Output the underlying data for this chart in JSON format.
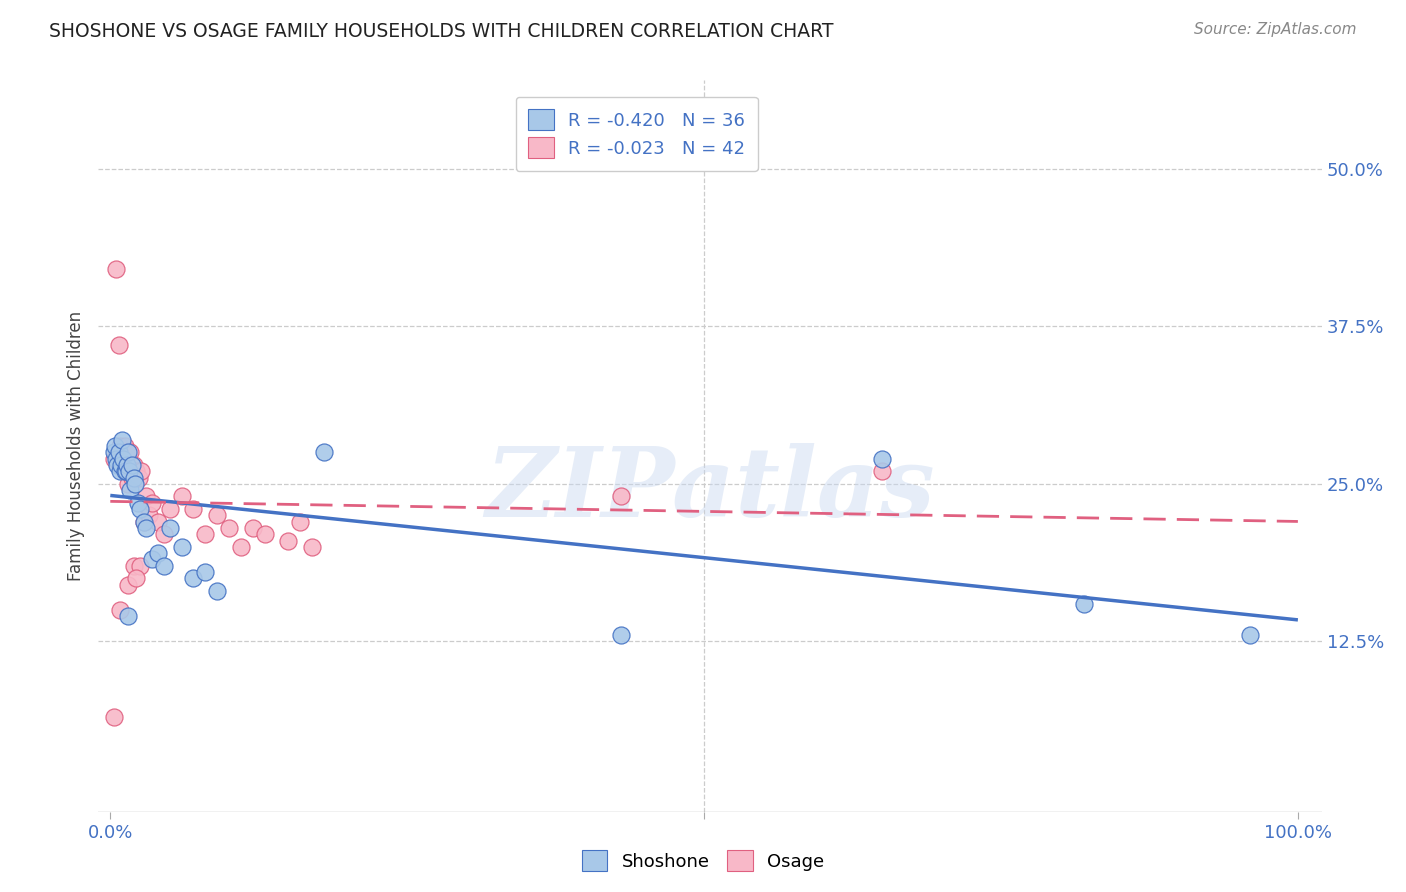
{
  "title": "SHOSHONE VS OSAGE FAMILY HOUSEHOLDS WITH CHILDREN CORRELATION CHART",
  "source": "Source: ZipAtlas.com",
  "ylabel": "Family Households with Children",
  "watermark": "ZIPatlas",
  "legend_blue_r": "R = -0.420",
  "legend_blue_n": "N = 36",
  "legend_pink_r": "R = -0.023",
  "legend_pink_n": "N = 42",
  "legend_label1": "Shoshone",
  "legend_label2": "Osage",
  "xlim": [
    -0.01,
    1.02
  ],
  "ylim": [
    -0.01,
    0.57
  ],
  "yticks": [
    0.125,
    0.25,
    0.375,
    0.5
  ],
  "ytick_labels": [
    "12.5%",
    "25.0%",
    "37.5%",
    "50.0%"
  ],
  "xtick_labels_left": "0.0%",
  "xtick_labels_right": "100.0%",
  "blue_fill": "#A8C8E8",
  "pink_fill": "#F8B8C8",
  "blue_edge": "#4472C4",
  "pink_edge": "#E06080",
  "blue_line": "#4472C4",
  "pink_line": "#E06080",
  "grid_color": "#CCCCCC",
  "bg_color": "#FFFFFF",
  "title_color": "#222222",
  "ylabel_color": "#444444",
  "tick_color": "#4472C4",
  "shoshone_x": [
    0.003,
    0.004,
    0.005,
    0.006,
    0.007,
    0.008,
    0.009,
    0.01,
    0.011,
    0.012,
    0.013,
    0.014,
    0.015,
    0.016,
    0.017,
    0.018,
    0.02,
    0.021,
    0.023,
    0.025,
    0.028,
    0.03,
    0.035,
    0.04,
    0.045,
    0.05,
    0.06,
    0.07,
    0.08,
    0.09,
    0.18,
    0.43,
    0.65,
    0.82,
    0.96,
    0.015
  ],
  "shoshone_y": [
    0.275,
    0.28,
    0.27,
    0.265,
    0.275,
    0.26,
    0.265,
    0.285,
    0.27,
    0.26,
    0.26,
    0.265,
    0.275,
    0.26,
    0.245,
    0.265,
    0.255,
    0.25,
    0.235,
    0.23,
    0.22,
    0.215,
    0.19,
    0.195,
    0.185,
    0.215,
    0.2,
    0.175,
    0.18,
    0.165,
    0.275,
    0.13,
    0.27,
    0.155,
    0.13,
    0.145
  ],
  "osage_x": [
    0.003,
    0.005,
    0.007,
    0.008,
    0.01,
    0.012,
    0.013,
    0.015,
    0.016,
    0.017,
    0.018,
    0.02,
    0.021,
    0.022,
    0.024,
    0.026,
    0.028,
    0.03,
    0.033,
    0.035,
    0.04,
    0.045,
    0.05,
    0.06,
    0.07,
    0.08,
    0.09,
    0.1,
    0.11,
    0.12,
    0.13,
    0.15,
    0.16,
    0.17,
    0.02,
    0.025,
    0.015,
    0.022,
    0.008,
    0.43,
    0.65,
    0.003
  ],
  "osage_y": [
    0.27,
    0.42,
    0.36,
    0.28,
    0.27,
    0.28,
    0.275,
    0.25,
    0.26,
    0.275,
    0.255,
    0.265,
    0.255,
    0.26,
    0.255,
    0.26,
    0.22,
    0.24,
    0.225,
    0.235,
    0.22,
    0.21,
    0.23,
    0.24,
    0.23,
    0.21,
    0.225,
    0.215,
    0.2,
    0.215,
    0.21,
    0.205,
    0.22,
    0.2,
    0.185,
    0.185,
    0.17,
    0.175,
    0.15,
    0.24,
    0.26,
    0.065
  ]
}
